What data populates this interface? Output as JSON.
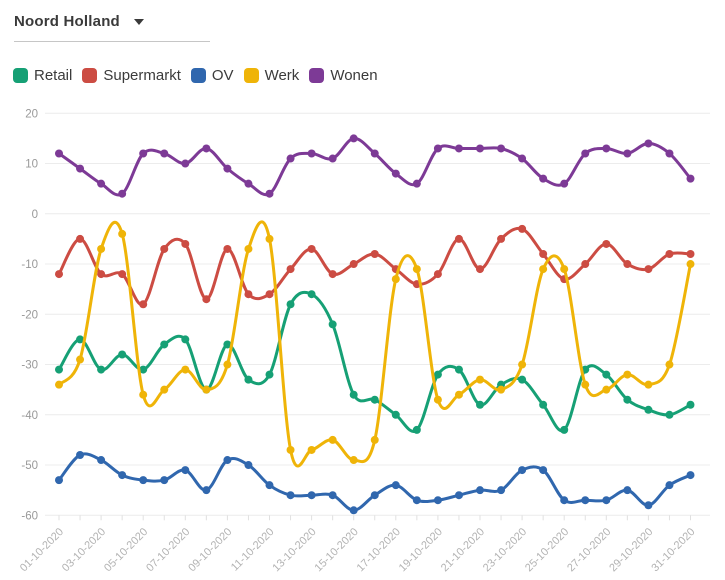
{
  "header": {
    "region_selector": {
      "label": "Noord Holland"
    }
  },
  "legend": [
    {
      "label": "Retail",
      "color": "#16a075"
    },
    {
      "label": "Supermarkt",
      "color": "#cc4c43"
    },
    {
      "label": "OV",
      "color": "#3067ae"
    },
    {
      "label": "Werk",
      "color": "#efb408"
    },
    {
      "label": "Wonen",
      "color": "#7d3a96"
    }
  ],
  "chart_data": {
    "type": "line",
    "title": "",
    "xlabel": "",
    "ylabel": "",
    "ylim": [
      -60,
      20
    ],
    "y_ticks": [
      20,
      10,
      0,
      -10,
      -20,
      -30,
      -40,
      -50,
      -60
    ],
    "grid": true,
    "legend_position": "top",
    "x_label_every": 2,
    "x": [
      "01-10-2020",
      "02-10-2020",
      "03-10-2020",
      "04-10-2020",
      "05-10-2020",
      "06-10-2020",
      "07-10-2020",
      "08-10-2020",
      "09-10-2020",
      "10-10-2020",
      "11-10-2020",
      "12-10-2020",
      "13-10-2020",
      "14-10-2020",
      "15-10-2020",
      "16-10-2020",
      "17-10-2020",
      "18-10-2020",
      "19-10-2020",
      "20-10-2020",
      "21-10-2020",
      "22-10-2020",
      "23-10-2020",
      "24-10-2020",
      "25-10-2020",
      "26-10-2020",
      "27-10-2020",
      "28-10-2020",
      "29-10-2020",
      "30-10-2020",
      "31-10-2020"
    ],
    "series": [
      {
        "name": "Retail",
        "color": "#16a075",
        "values": [
          -31,
          -25,
          -31,
          -28,
          -31,
          -26,
          -25,
          -35,
          -26,
          -33,
          -32,
          -18,
          -16,
          -22,
          -36,
          -37,
          -40,
          -43,
          -32,
          -31,
          -38,
          -34,
          -33,
          -38,
          -43,
          -31,
          -32,
          -37,
          -39,
          -40,
          -38
        ]
      },
      {
        "name": "Supermarkt",
        "color": "#cc4c43",
        "values": [
          -12,
          -5,
          -12,
          -12,
          -18,
          -7,
          -6,
          -17,
          -7,
          -16,
          -16,
          -11,
          -7,
          -12,
          -10,
          -8,
          -11,
          -14,
          -12,
          -5,
          -11,
          -5,
          -3,
          -8,
          -13,
          -10,
          -6,
          -10,
          -11,
          -8,
          -8
        ]
      },
      {
        "name": "OV",
        "color": "#3067ae",
        "values": [
          -53,
          -48,
          -49,
          -52,
          -53,
          -53,
          -51,
          -55,
          -49,
          -50,
          -54,
          -56,
          -56,
          -56,
          -59,
          -56,
          -54,
          -57,
          -57,
          -56,
          -55,
          -55,
          -51,
          -51,
          -57,
          -57,
          -57,
          -55,
          -58,
          -54,
          -52
        ]
      },
      {
        "name": "Werk",
        "color": "#efb408",
        "values": [
          -34,
          -29,
          -7,
          -4,
          -36,
          -35,
          -31,
          -35,
          -30,
          -7,
          -5,
          -47,
          -47,
          -45,
          -49,
          -45,
          -13,
          -11,
          -37,
          -36,
          -33,
          -35,
          -30,
          -11,
          -11,
          -34,
          -35,
          -32,
          -34,
          -30,
          -10
        ]
      },
      {
        "name": "Wonen",
        "color": "#7d3a96",
        "values": [
          12,
          9,
          6,
          4,
          12,
          12,
          10,
          13,
          9,
          6,
          4,
          11,
          12,
          11,
          15,
          12,
          8,
          6,
          13,
          13,
          13,
          13,
          11,
          7,
          6,
          12,
          13,
          12,
          14,
          12,
          7
        ]
      }
    ],
    "style": {
      "gridline_color": "#ececec",
      "y_label_color": "#999999",
      "x_label_color": "#b3b3b3",
      "tick_color": "#e0e0e0"
    }
  }
}
